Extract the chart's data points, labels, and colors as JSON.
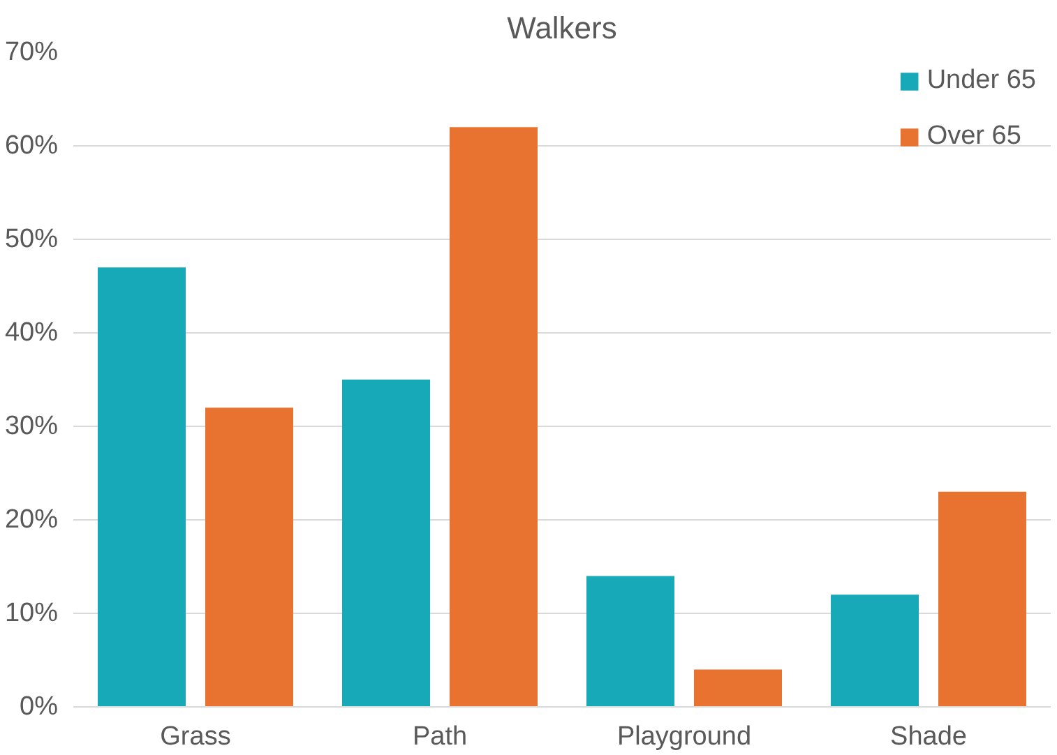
{
  "chart_data": {
    "type": "bar",
    "title": "Walkers",
    "categories": [
      "Grass",
      "Path",
      "Playground",
      "Shade"
    ],
    "series": [
      {
        "name": "Under 65",
        "color": "#17a9b8",
        "values": [
          47,
          35,
          14,
          12
        ]
      },
      {
        "name": "Over 65",
        "color": "#e8722f",
        "values": [
          32,
          62,
          4,
          23
        ]
      }
    ],
    "ylim": [
      0,
      70
    ],
    "yticks": [
      {
        "value": 0,
        "label": "0%"
      },
      {
        "value": 10,
        "label": "10%"
      },
      {
        "value": 20,
        "label": "20%"
      },
      {
        "value": 30,
        "label": "30%"
      },
      {
        "value": 40,
        "label": "40%"
      },
      {
        "value": 50,
        "label": "50%"
      },
      {
        "value": 60,
        "label": "60%"
      },
      {
        "value": 70,
        "label": "70%"
      }
    ],
    "grid": "y",
    "legend": "top right"
  }
}
